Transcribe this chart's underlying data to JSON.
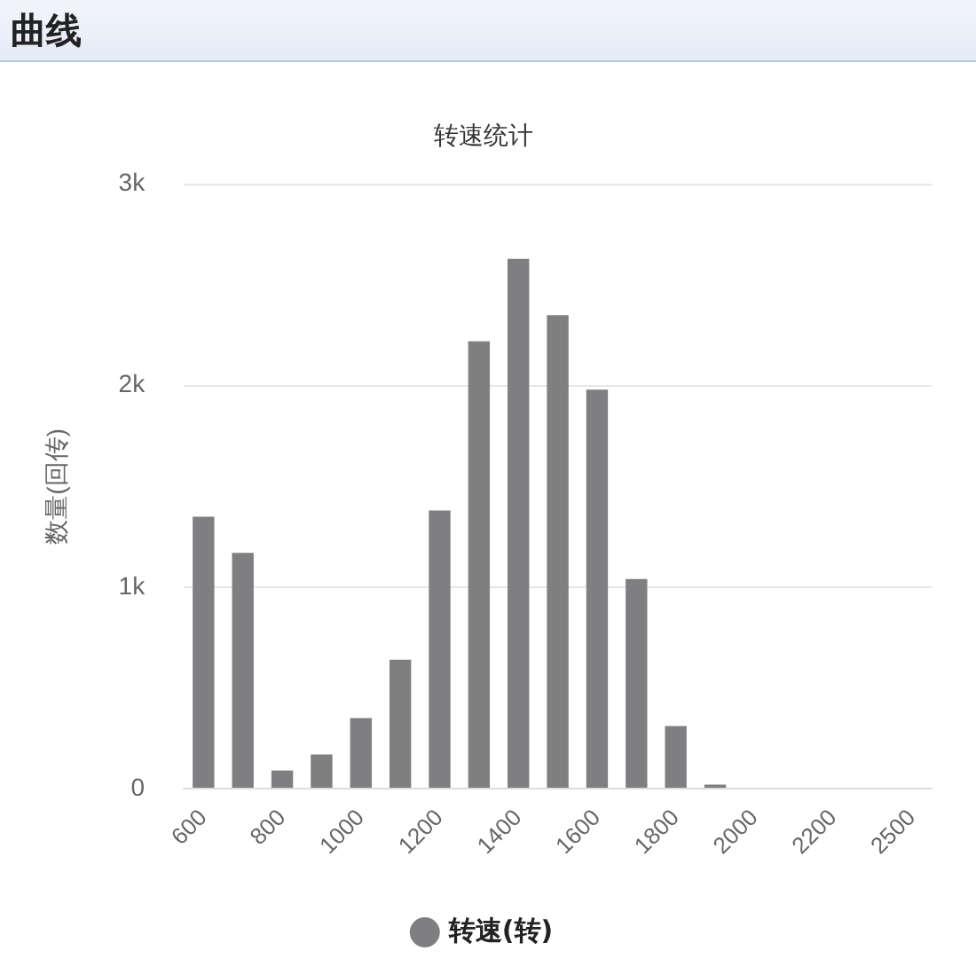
{
  "chart_data": {
    "type": "bar",
    "title": "转速统计",
    "annotations": [
      "曲线"
    ],
    "ylabel": "数量(回传)",
    "categories": [
      "600",
      null,
      "800",
      null,
      "1000",
      null,
      "1200",
      null,
      "1400",
      null,
      "1600",
      null,
      "1800",
      null,
      "2000",
      null,
      "2200",
      null,
      "2500"
    ],
    "series": [
      {
        "name": "转速(转)",
        "color": "#7f7e80",
        "values": [
          1350,
          1170,
          90,
          170,
          350,
          640,
          1380,
          2220,
          2630,
          2350,
          1980,
          1040,
          310,
          20,
          0,
          0,
          0,
          0,
          0
        ]
      }
    ],
    "ylim": [
      0,
      3000
    ],
    "yticks": [
      0,
      {
        "value": 1000,
        "label": "1k"
      },
      {
        "value": 2000,
        "label": "2k"
      },
      {
        "value": 3000,
        "label": "3k"
      }
    ],
    "grid": "y",
    "legend": "bottom",
    "marker": "circle"
  }
}
